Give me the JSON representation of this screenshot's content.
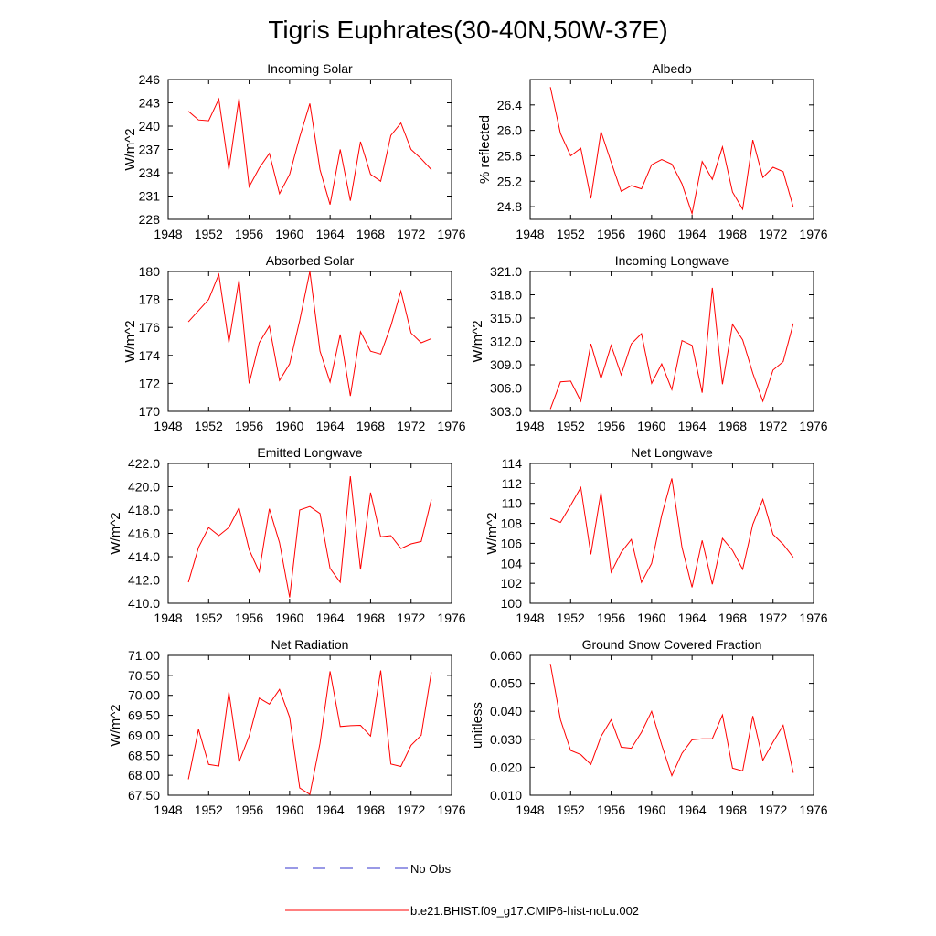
{
  "figure": {
    "title": "Tigris Euphrates(30-40N,50W-37E)",
    "legend": [
      {
        "label": "No Obs",
        "color": "#3333cc",
        "style": "dashed"
      },
      {
        "label": "b.e21.BHIST.f09_g17.CMIP6-hist-noLu.002",
        "color": "#ff0000",
        "style": "solid"
      }
    ]
  },
  "chart_data": [
    {
      "type": "line",
      "title": "Incoming Solar",
      "xlabel": "",
      "ylabel": "W/m^2",
      "xlim": [
        1948,
        1976
      ],
      "xticks": [
        "1948",
        "1952",
        "1956",
        "1960",
        "1964",
        "1968",
        "1972",
        "1976"
      ],
      "ylim": [
        228,
        246
      ],
      "yticks": [
        "228",
        "231",
        "234",
        "237",
        "240",
        "243",
        "246"
      ],
      "x": [
        1950,
        1951,
        1952,
        1953,
        1954,
        1955,
        1956,
        1957,
        1958,
        1959,
        1960,
        1961,
        1962,
        1963,
        1964,
        1965,
        1966,
        1967,
        1968,
        1969,
        1970,
        1971,
        1972,
        1973,
        1974
      ],
      "series": [
        {
          "color": "#ff0000",
          "values": [
            241.9,
            240.8,
            240.7,
            243.5,
            234.4,
            243.6,
            232.2,
            234.6,
            236.5,
            231.3,
            233.8,
            238.6,
            242.9,
            234.4,
            229.9,
            237.0,
            230.4,
            238.0,
            233.8,
            232.9,
            238.8,
            240.4,
            237.0,
            235.8,
            234.4
          ]
        }
      ]
    },
    {
      "type": "line",
      "title": "Albedo",
      "xlabel": "",
      "ylabel": "% reflected",
      "xlim": [
        1948,
        1976
      ],
      "xticks": [
        "1948",
        "1952",
        "1956",
        "1960",
        "1964",
        "1968",
        "1972",
        "1976"
      ],
      "ylim": [
        24.6,
        26.8
      ],
      "yticks": [
        "24.8",
        "25.2",
        "25.6",
        "26.0",
        "26.4"
      ],
      "x": [
        1950,
        1951,
        1952,
        1953,
        1954,
        1955,
        1956,
        1957,
        1958,
        1959,
        1960,
        1961,
        1962,
        1963,
        1964,
        1965,
        1966,
        1967,
        1968,
        1969,
        1970,
        1971,
        1972,
        1973,
        1974
      ],
      "series": [
        {
          "color": "#ff0000",
          "values": [
            26.68,
            25.95,
            25.6,
            25.72,
            24.93,
            25.98,
            25.5,
            25.04,
            25.13,
            25.08,
            25.46,
            25.54,
            25.47,
            25.16,
            24.69,
            25.51,
            25.23,
            25.74,
            25.03,
            24.76,
            25.85,
            25.26,
            25.42,
            25.35,
            24.79
          ]
        }
      ]
    },
    {
      "type": "line",
      "title": "Absorbed Solar",
      "xlabel": "",
      "ylabel": "W/m^2",
      "xlim": [
        1948,
        1976
      ],
      "xticks": [
        "1948",
        "1952",
        "1956",
        "1960",
        "1964",
        "1968",
        "1972",
        "1976"
      ],
      "ylim": [
        170,
        180
      ],
      "yticks": [
        "170",
        "172",
        "174",
        "176",
        "178",
        "180"
      ],
      "x": [
        1950,
        1951,
        1952,
        1953,
        1954,
        1955,
        1956,
        1957,
        1958,
        1959,
        1960,
        1961,
        1962,
        1963,
        1964,
        1965,
        1966,
        1967,
        1968,
        1969,
        1970,
        1971,
        1972,
        1973,
        1974
      ],
      "series": [
        {
          "color": "#ff0000",
          "values": [
            176.4,
            177.2,
            178.0,
            179.8,
            174.9,
            179.4,
            172.0,
            174.9,
            176.1,
            172.2,
            173.4,
            176.5,
            180.0,
            174.3,
            172.1,
            175.5,
            171.1,
            175.7,
            174.3,
            174.1,
            176.1,
            178.6,
            175.6,
            174.9,
            175.2
          ]
        }
      ]
    },
    {
      "type": "line",
      "title": "Incoming Longwave",
      "xlabel": "",
      "ylabel": "W/m^2",
      "xlim": [
        1948,
        1976
      ],
      "xticks": [
        "1948",
        "1952",
        "1956",
        "1960",
        "1964",
        "1968",
        "1972",
        "1976"
      ],
      "ylim": [
        303.0,
        321.0
      ],
      "yticks": [
        "303.0",
        "306.0",
        "309.0",
        "312.0",
        "315.0",
        "318.0",
        "321.0"
      ],
      "x": [
        1950,
        1951,
        1952,
        1953,
        1954,
        1955,
        1956,
        1957,
        1958,
        1959,
        1960,
        1961,
        1962,
        1963,
        1964,
        1965,
        1966,
        1967,
        1968,
        1969,
        1970,
        1971,
        1972,
        1973,
        1974
      ],
      "series": [
        {
          "color": "#ff0000",
          "values": [
            303.3,
            306.8,
            306.9,
            304.3,
            311.7,
            307.2,
            311.5,
            307.7,
            311.7,
            313.0,
            306.6,
            309.1,
            305.8,
            312.1,
            311.5,
            305.4,
            318.9,
            306.5,
            314.2,
            312.2,
            307.9,
            304.3,
            308.3,
            309.4,
            314.3
          ]
        }
      ]
    },
    {
      "type": "line",
      "title": "Emitted Longwave",
      "xlabel": "",
      "ylabel": "W/m^2",
      "xlim": [
        1948,
        1976
      ],
      "xticks": [
        "1948",
        "1952",
        "1956",
        "1960",
        "1964",
        "1968",
        "1972",
        "1976"
      ],
      "ylim": [
        410.0,
        422.0
      ],
      "yticks": [
        "410.0",
        "412.0",
        "414.0",
        "416.0",
        "418.0",
        "420.0",
        "422.0"
      ],
      "x": [
        1950,
        1951,
        1952,
        1953,
        1954,
        1955,
        1956,
        1957,
        1958,
        1959,
        1960,
        1961,
        1962,
        1963,
        1964,
        1965,
        1966,
        1967,
        1968,
        1969,
        1970,
        1971,
        1972,
        1973,
        1974
      ],
      "series": [
        {
          "color": "#ff0000",
          "values": [
            411.8,
            414.8,
            416.5,
            415.8,
            416.5,
            418.2,
            414.6,
            412.7,
            418.1,
            415.2,
            410.5,
            418.0,
            418.3,
            417.7,
            413.0,
            411.8,
            420.9,
            412.9,
            419.5,
            415.7,
            415.8,
            414.7,
            415.1,
            415.3,
            418.9
          ]
        }
      ]
    },
    {
      "type": "line",
      "title": "Net Longwave",
      "xlabel": "",
      "ylabel": "W/m^2",
      "xlim": [
        1948,
        1976
      ],
      "xticks": [
        "1948",
        "1952",
        "1956",
        "1960",
        "1964",
        "1968",
        "1972",
        "1976"
      ],
      "ylim": [
        100,
        114
      ],
      "yticks": [
        "100",
        "102",
        "104",
        "106",
        "108",
        "110",
        "112",
        "114"
      ],
      "x": [
        1950,
        1951,
        1952,
        1953,
        1954,
        1955,
        1956,
        1957,
        1958,
        1959,
        1960,
        1961,
        1962,
        1963,
        1964,
        1965,
        1966,
        1967,
        1968,
        1969,
        1970,
        1971,
        1972,
        1973,
        1974
      ],
      "series": [
        {
          "color": "#ff0000",
          "values": [
            108.5,
            108.1,
            109.8,
            111.6,
            104.9,
            111.1,
            103.1,
            105.1,
            106.4,
            102.1,
            104.0,
            108.8,
            112.5,
            105.6,
            101.6,
            106.3,
            101.9,
            106.5,
            105.3,
            103.4,
            107.9,
            110.4,
            106.9,
            105.9,
            104.6
          ]
        }
      ]
    },
    {
      "type": "line",
      "title": "Net Radiation",
      "xlabel": "",
      "ylabel": "W/m^2",
      "xlim": [
        1948,
        1976
      ],
      "xticks": [
        "1948",
        "1952",
        "1956",
        "1960",
        "1964",
        "1968",
        "1972",
        "1976"
      ],
      "ylim": [
        67.5,
        71.0
      ],
      "yticks": [
        "67.50",
        "68.00",
        "68.50",
        "69.00",
        "69.50",
        "70.00",
        "70.50",
        "71.00"
      ],
      "x": [
        1950,
        1951,
        1952,
        1953,
        1954,
        1955,
        1956,
        1957,
        1958,
        1959,
        1960,
        1961,
        1962,
        1963,
        1964,
        1965,
        1966,
        1967,
        1968,
        1969,
        1970,
        1971,
        1972,
        1973,
        1974
      ],
      "series": [
        {
          "color": "#ff0000",
          "values": [
            67.9,
            69.15,
            68.27,
            68.23,
            70.08,
            68.33,
            68.98,
            69.93,
            69.78,
            70.15,
            69.45,
            67.68,
            67.52,
            68.8,
            70.6,
            69.22,
            69.24,
            69.25,
            68.98,
            70.62,
            68.28,
            68.22,
            68.75,
            69.0,
            70.58
          ]
        }
      ]
    },
    {
      "type": "line",
      "title": "Ground Snow Covered Fraction",
      "xlabel": "",
      "ylabel": "unitless",
      "xlim": [
        1948,
        1976
      ],
      "xticks": [
        "1948",
        "1952",
        "1956",
        "1960",
        "1964",
        "1968",
        "1972",
        "1976"
      ],
      "ylim": [
        0.01,
        0.06
      ],
      "yticks": [
        "0.010",
        "0.020",
        "0.030",
        "0.040",
        "0.050",
        "0.060"
      ],
      "x": [
        1950,
        1951,
        1952,
        1953,
        1954,
        1955,
        1956,
        1957,
        1958,
        1959,
        1960,
        1961,
        1962,
        1963,
        1964,
        1965,
        1966,
        1967,
        1968,
        1969,
        1970,
        1971,
        1972,
        1973,
        1974
      ],
      "series": [
        {
          "color": "#ff0000",
          "values": [
            0.057,
            0.037,
            0.026,
            0.0245,
            0.021,
            0.031,
            0.037,
            0.0272,
            0.0268,
            0.0325,
            0.04,
            0.028,
            0.017,
            0.025,
            0.0298,
            0.0302,
            0.0302,
            0.0387,
            0.0197,
            0.0187,
            0.0383,
            0.0225,
            0.029,
            0.035,
            0.018
          ]
        }
      ]
    }
  ]
}
